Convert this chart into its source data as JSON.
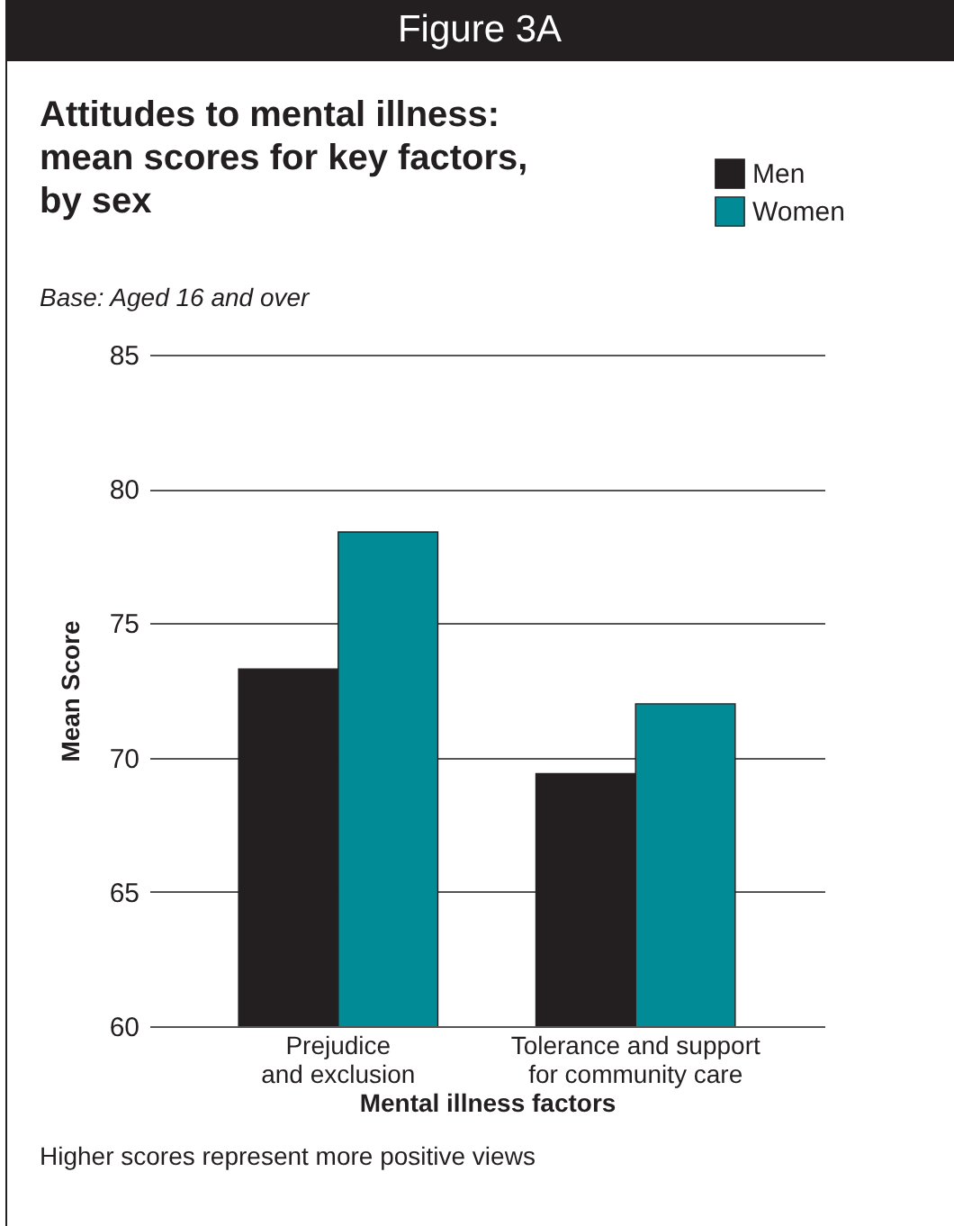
{
  "chart_data": {
    "type": "bar",
    "title": "Figure 3A",
    "subtitle": "Attitudes to mental illness: mean scores for key factors, by sex",
    "annotations": [
      "Base: Aged 16 and over",
      "Higher scores represent more positive views"
    ],
    "xlabel": "Mental illness factors",
    "ylabel": "Mean Score",
    "categories": [
      "Prejudice\nand exclusion",
      "Tolerance and support\nfor community care"
    ],
    "series": [
      {
        "name": "Men",
        "color": "#231f20",
        "values": [
          73.3,
          69.4
        ]
      },
      {
        "name": "Women",
        "color": "#008b97",
        "values": [
          78.4,
          72.0
        ]
      }
    ],
    "ylim": [
      60,
      85
    ],
    "yticks": [
      60,
      65,
      70,
      75,
      80,
      85
    ],
    "grid": "y",
    "legend": "top right"
  }
}
